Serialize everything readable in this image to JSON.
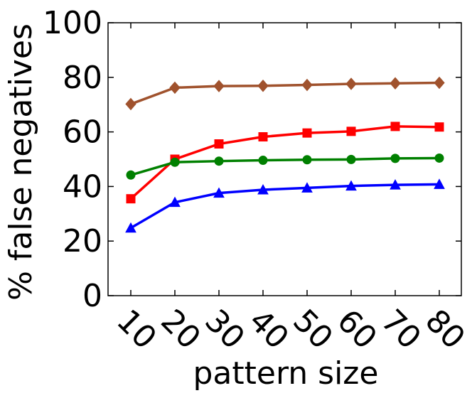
{
  "chart_data": {
    "type": "line",
    "title": "",
    "xlabel": "pattern size",
    "ylabel": "% false negatives",
    "categories": [
      "10",
      "20",
      "30",
      "40",
      "50",
      "60",
      "70",
      "80"
    ],
    "ylim": [
      0,
      100
    ],
    "yticks": [
      "0",
      "20",
      "40",
      "60",
      "80",
      "100"
    ],
    "grid": false,
    "series": [
      {
        "color": "#a0522d",
        "marker": "diamond",
        "values": [
          70.2,
          76.2,
          76.8,
          76.9,
          77.2,
          77.6,
          77.8,
          78.0
        ]
      },
      {
        "color": "#ff0000",
        "marker": "square",
        "values": [
          35.5,
          50.0,
          55.6,
          58.2,
          59.6,
          60.2,
          62.0,
          61.8
        ]
      },
      {
        "color": "#008000",
        "marker": "circle",
        "values": [
          44.2,
          48.9,
          49.3,
          49.6,
          49.8,
          49.9,
          50.3,
          50.4
        ]
      },
      {
        "color": "#0000ff",
        "marker": "triangle",
        "values": [
          24.8,
          34.2,
          37.6,
          38.8,
          39.5,
          40.2,
          40.6,
          40.8
        ]
      }
    ]
  }
}
